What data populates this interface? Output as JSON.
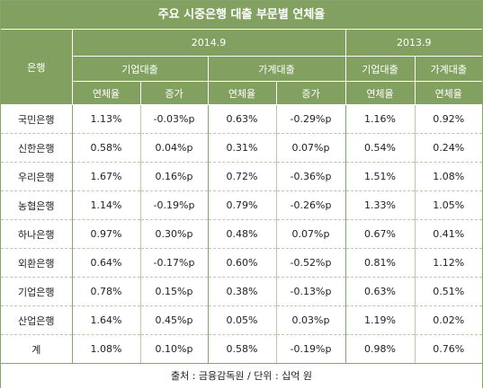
{
  "title": "주요 시중은행 대출 부문별 연체율",
  "header": {
    "bank_col": "은행",
    "period_2014": "2014.9",
    "period_2013": "2013.9",
    "corp_loans_2014": "기업대출",
    "house_loans_2014": "가계대출",
    "corp_loans_2013": "기업대출",
    "house_loans_2013": "가계대출",
    "delinq_rate_1": "연체율",
    "increase_1": "증가",
    "delinq_rate_2": "연체율",
    "increase_2": "증가",
    "delinq_rate_3": "연체율",
    "delinq_rate_4": "연체율"
  },
  "rows": [
    {
      "bank": "국민은행",
      "c14_rate": "1.13%",
      "c14_inc": "-0.03%p",
      "h14_rate": "0.63%",
      "h14_inc": "-0.29%p",
      "c13_rate": "1.16%",
      "h13_rate": "0.92%"
    },
    {
      "bank": "신한은행",
      "c14_rate": "0.58%",
      "c14_inc": "0.04%p",
      "h14_rate": "0.31%",
      "h14_inc": "0.07%p",
      "c13_rate": "0.54%",
      "h13_rate": "0.24%"
    },
    {
      "bank": "우리은행",
      "c14_rate": "1.67%",
      "c14_inc": "0.16%p",
      "h14_rate": "0.72%",
      "h14_inc": "-0.36%p",
      "c13_rate": "1.51%",
      "h13_rate": "1.08%"
    },
    {
      "bank": "농협은행",
      "c14_rate": "1.14%",
      "c14_inc": "-0.19%p",
      "h14_rate": "0.79%",
      "h14_inc": "-0.26%p",
      "c13_rate": "1.33%",
      "h13_rate": "1.05%"
    },
    {
      "bank": "하나은행",
      "c14_rate": "0.97%",
      "c14_inc": "0.30%p",
      "h14_rate": "0.48%",
      "h14_inc": "0.07%p",
      "c13_rate": "0.67%",
      "h13_rate": "0.41%"
    },
    {
      "bank": "외환은행",
      "c14_rate": "0.64%",
      "c14_inc": "-0.17%p",
      "h14_rate": "0.60%",
      "h14_inc": "-0.52%p",
      "c13_rate": "0.81%",
      "h13_rate": "1.12%"
    },
    {
      "bank": "기업은행",
      "c14_rate": "0.78%",
      "c14_inc": "0.15%p",
      "h14_rate": "0.38%",
      "h14_inc": "-0.13%p",
      "c13_rate": "0.63%",
      "h13_rate": "0.51%"
    },
    {
      "bank": "산업은행",
      "c14_rate": "1.64%",
      "c14_inc": "0.45%p",
      "h14_rate": "0.05%",
      "h14_inc": "0.03%p",
      "c13_rate": "1.19%",
      "h13_rate": "0.02%"
    },
    {
      "bank": "계",
      "c14_rate": "1.08%",
      "c14_inc": "0.10%p",
      "h14_rate": "0.58%",
      "h14_inc": "-0.19%p",
      "c13_rate": "0.98%",
      "h13_rate": "0.76%"
    }
  ],
  "source": "출처 : 금융감독원 / 단위 : 십억 원",
  "colors": {
    "header_bg": "#82a161",
    "header_text": "#ffffff",
    "border": "#8aa36b",
    "body_text": "#222222"
  }
}
